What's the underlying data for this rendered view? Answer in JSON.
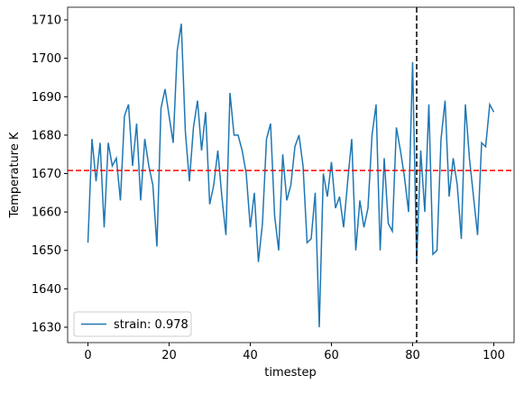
{
  "chart_data": {
    "type": "line",
    "x_label": "timestep",
    "y_label": "Temperature K",
    "x": [
      0,
      1,
      2,
      3,
      4,
      5,
      6,
      7,
      8,
      9,
      10,
      11,
      12,
      13,
      14,
      15,
      16,
      17,
      18,
      19,
      20,
      21,
      22,
      23,
      24,
      25,
      26,
      27,
      28,
      29,
      30,
      31,
      32,
      33,
      34,
      35,
      36,
      37,
      38,
      39,
      40,
      41,
      42,
      43,
      44,
      45,
      46,
      47,
      48,
      49,
      50,
      51,
      52,
      53,
      54,
      55,
      56,
      57,
      58,
      59,
      60,
      61,
      62,
      63,
      64,
      65,
      66,
      67,
      68,
      69,
      70,
      71,
      72,
      73,
      74,
      75,
      76,
      77,
      78,
      79,
      80,
      81,
      82,
      83,
      84,
      85,
      86,
      87,
      88,
      89,
      90,
      91,
      92,
      93,
      94,
      95,
      96,
      97,
      98,
      99,
      100
    ],
    "series": [
      {
        "name": "strain: 0.978",
        "color": "#1f77b4",
        "values": [
          1652,
          1679,
          1668,
          1678,
          1656,
          1678,
          1672,
          1674,
          1663,
          1685,
          1688,
          1672,
          1683,
          1663,
          1679,
          1672,
          1667,
          1651,
          1687,
          1692,
          1685,
          1678,
          1702,
          1709,
          1681,
          1668,
          1682,
          1689,
          1676,
          1686,
          1662,
          1667,
          1676,
          1664,
          1654,
          1691,
          1680,
          1680,
          1676,
          1670,
          1656,
          1665,
          1647,
          1657,
          1679,
          1683,
          1659,
          1650,
          1675,
          1663,
          1667,
          1677,
          1680,
          1672,
          1652,
          1653,
          1665,
          1630,
          1670,
          1664,
          1673,
          1661,
          1664,
          1656,
          1668,
          1679,
          1650,
          1663,
          1656,
          1661,
          1680,
          1688,
          1650,
          1674,
          1657,
          1655,
          1682,
          1676,
          1669,
          1660,
          1699,
          1647,
          1676,
          1660,
          1688,
          1649,
          1650,
          1679,
          1689,
          1664,
          1674,
          1667,
          1653,
          1688,
          1674,
          1664,
          1654,
          1678,
          1677,
          1688,
          1686
        ]
      }
    ],
    "reference_lines": [
      {
        "axis": "y",
        "value": 1670.8,
        "color": "#ff0000"
      },
      {
        "axis": "x",
        "value": 81,
        "color": "#000000"
      }
    ],
    "xlim": [
      -5,
      105
    ],
    "ylim": [
      1626,
      1713.3
    ],
    "xticks": [
      0,
      20,
      40,
      60,
      80,
      100
    ],
    "yticks": [
      1630,
      1640,
      1650,
      1660,
      1670,
      1680,
      1690,
      1700,
      1710
    ],
    "legend": "lower left"
  }
}
